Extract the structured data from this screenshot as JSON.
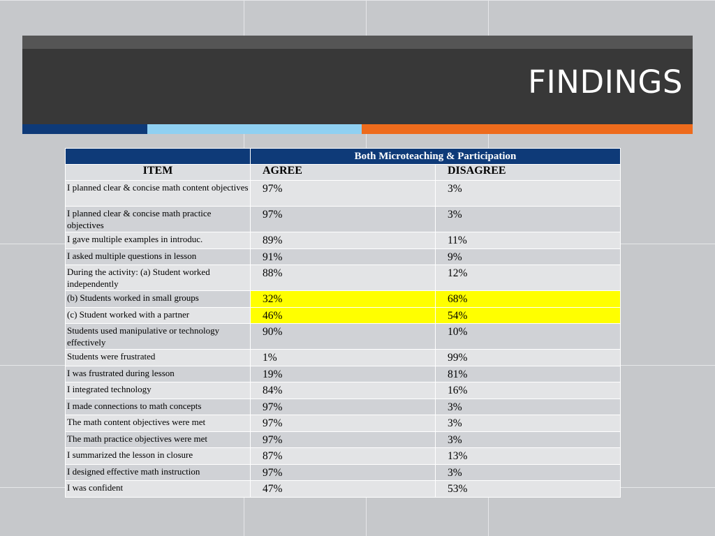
{
  "slide": {
    "title": "FINDINGS",
    "accent_colors": [
      "#0e3a78",
      "#8fd0f2",
      "#ee6b1c"
    ]
  },
  "table": {
    "group_header": "Both Microteaching & Participation",
    "columns": [
      "ITEM",
      "AGREE",
      "DISAGREE"
    ],
    "highlight_color": "#ffff00",
    "rows": [
      {
        "item": "I planned clear & concise math content objectives",
        "agree": "97%",
        "disagree": "3%"
      },
      {
        "item": "I planned clear & concise math practice objectives",
        "agree": "97%",
        "disagree": "3%"
      },
      {
        "item": "I gave multiple examples in introduc.",
        "agree": "89%",
        "disagree": "11%"
      },
      {
        "item": "I asked multiple questions in lesson",
        "agree": "91%",
        "disagree": "9%"
      },
      {
        "item": "During the activity: (a) Student worked independently",
        "agree": "88%",
        "disagree": "12%"
      },
      {
        "item": "(b) Students worked in small groups",
        "agree": "32%",
        "disagree": "68%",
        "highlighted": true
      },
      {
        "item": "(c) Student worked with a partner",
        "agree": "46%",
        "disagree": "54%",
        "highlighted": true
      },
      {
        "item": "Students used manipulative or technology effectively",
        "agree": "90%",
        "disagree": "10%"
      },
      {
        "item": "Students were frustrated",
        "agree": "1%",
        "disagree": "99%"
      },
      {
        "item": "I was frustrated during lesson",
        "agree": "19%",
        "disagree": "81%"
      },
      {
        "item": "I integrated technology",
        "agree": "84%",
        "disagree": "16%"
      },
      {
        "item": "I made connections to math concepts",
        "agree": "97%",
        "disagree": "3%"
      },
      {
        "item": "The math content objectives were met",
        "agree": "97%",
        "disagree": "3%"
      },
      {
        "item": "The math practice objectives were met",
        "agree": "97%",
        "disagree": "3%"
      },
      {
        "item": "I summarized the lesson in closure",
        "agree": "87%",
        "disagree": "13%"
      },
      {
        "item": "I designed effective math instruction",
        "agree": "97%",
        "disagree": "3%"
      },
      {
        "item": "I was confident",
        "agree": "47%",
        "disagree": "53%"
      }
    ]
  }
}
